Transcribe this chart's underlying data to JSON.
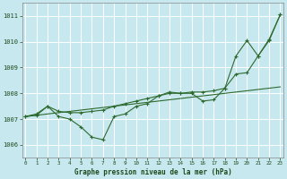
{
  "background_color": "#c8e8f0",
  "grid_color": "#ffffff",
  "line_color": "#2d6a2d",
  "title": "Graphe pression niveau de la mer (hPa)",
  "ylim": [
    1005.5,
    1011.5
  ],
  "yticks": [
    1006,
    1007,
    1008,
    1009,
    1010,
    1011
  ],
  "smooth_line": [
    1007.1,
    1007.15,
    1007.2,
    1007.25,
    1007.3,
    1007.35,
    1007.4,
    1007.45,
    1007.5,
    1007.55,
    1007.6,
    1007.65,
    1007.7,
    1007.75,
    1007.8,
    1007.85,
    1007.9,
    1007.95,
    1008.0,
    1008.05,
    1008.1,
    1008.15,
    1008.2,
    1008.25
  ],
  "marker_line": [
    1007.1,
    1007.2,
    1007.5,
    1007.1,
    1007.0,
    1006.7,
    1006.3,
    1006.2,
    1007.1,
    1007.2,
    1007.5,
    1007.6,
    1007.9,
    1008.05,
    1008.0,
    1008.0,
    1007.7,
    1007.75,
    1008.2,
    1009.45,
    1010.05,
    1009.45,
    1010.05,
    1011.05
  ],
  "upper_line": [
    1007.1,
    1007.15,
    1007.5,
    1007.3,
    1007.25,
    1007.25,
    1007.3,
    1007.35,
    1007.5,
    1007.6,
    1007.7,
    1007.8,
    1007.9,
    1008.0,
    1008.0,
    1008.05,
    1008.05,
    1008.1,
    1008.2,
    1008.75,
    1008.8,
    1009.45,
    1010.1,
    1011.05
  ]
}
